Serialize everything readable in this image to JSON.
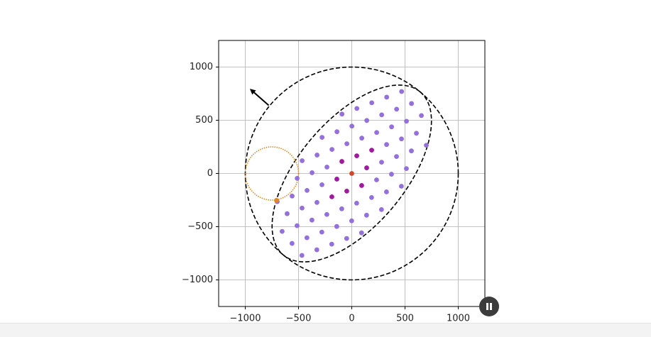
{
  "chart_data": {
    "type": "scatter",
    "xlim": [
      -1250,
      1250
    ],
    "ylim": [
      -1250,
      1250
    ],
    "xticks": [
      {
        "value": -1000,
        "label": "−1000"
      },
      {
        "value": -500,
        "label": "−500"
      },
      0,
      500,
      1000
    ],
    "yticks": [
      {
        "value": -1000,
        "label": "−1000"
      },
      {
        "value": -500,
        "label": "−500"
      },
      0,
      500,
      1000
    ],
    "grid": true,
    "series": [
      {
        "color": "#9370db",
        "x": [
          -700,
          -560,
          -420,
          -280,
          280,
          420,
          560,
          700,
          -513,
          -373,
          -233,
          327,
          467,
          607,
          -607,
          -467,
          -327,
          233,
          373,
          513,
          -466,
          -326,
          -186,
          -46,
          94,
          234,
          374,
          514,
          654,
          -654,
          -514,
          -374,
          -234,
          -94,
          46,
          186,
          326,
          466,
          -279,
          -139,
          1,
          141,
          281,
          421,
          561,
          -561,
          -421,
          -281,
          -141,
          -1,
          139,
          279,
          -92,
          48,
          188,
          328,
          468,
          -468,
          -328,
          -188,
          -48,
          92
        ],
        "y": [
          -265,
          -212,
          -159,
          -106,
          106,
          159,
          212,
          265,
          -46,
          7,
          60,
          272,
          325,
          378,
          -378,
          -325,
          -272,
          -60,
          -7,
          46,
          120,
          173,
          226,
          279,
          332,
          385,
          438,
          491,
          544,
          -544,
          -491,
          -438,
          -385,
          -332,
          -279,
          -226,
          -173,
          -120,
          339,
          392,
          445,
          498,
          551,
          604,
          657,
          -657,
          -604,
          -551,
          -498,
          -445,
          -392,
          -339,
          558,
          611,
          664,
          717,
          770,
          -770,
          -717,
          -664,
          -611,
          -558
        ]
      },
      {
        "color": "#a0199f",
        "x": [
          140,
          -140,
          -93,
          93,
          47,
          -47,
          187,
          -187
        ],
        "y": [
          53,
          -53,
          113,
          -113,
          166,
          -166,
          219,
          -219
        ]
      },
      {
        "color": "#d6452a",
        "x": [
          0
        ],
        "y": [
          0
        ]
      },
      {
        "color": "#e08a1e",
        "x": [
          -707
        ],
        "y": [
          -253
        ]
      }
    ],
    "ellipses": [
      {
        "center": [
          0,
          0
        ],
        "width": 2000,
        "height": 2000,
        "angle": 0,
        "color": "#000000",
        "linestyle": "dashed"
      },
      {
        "center": [
          0,
          0
        ],
        "width": 2000,
        "height": 1000,
        "angle": 50,
        "color": "#000000",
        "linestyle": "dashed"
      },
      {
        "center": [
          -750,
          0
        ],
        "width": 500,
        "height": 500,
        "angle": 0,
        "color": "#d98a1f",
        "linestyle": "dotted"
      }
    ],
    "arrow": {
      "start": [
        -780,
        640
      ],
      "end": [
        -947,
        787
      ],
      "color": "#000000"
    }
  }
}
